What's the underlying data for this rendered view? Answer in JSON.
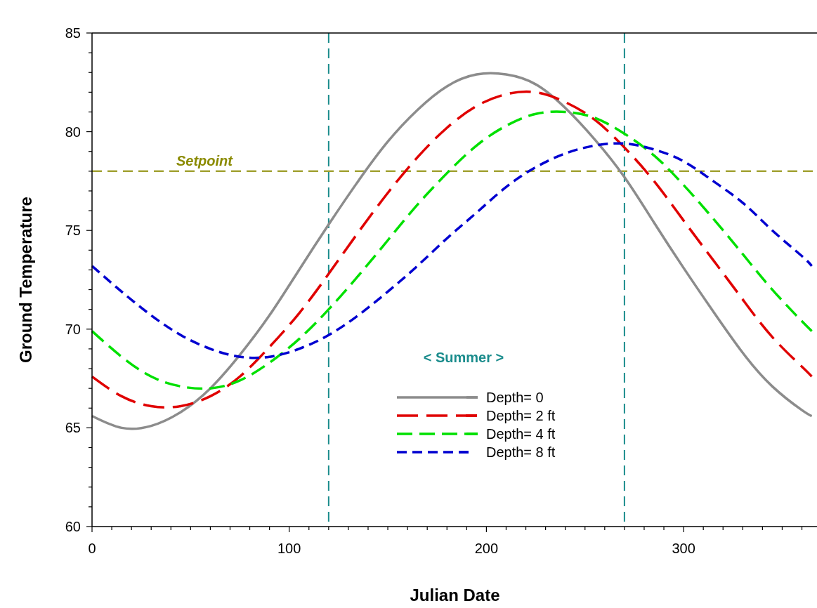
{
  "chart_data": {
    "type": "line",
    "xlabel": "Julian Date",
    "ylabel": "Ground Temperature",
    "x": [
      0,
      15,
      30,
      45,
      60,
      75,
      90,
      105,
      120,
      135,
      150,
      165,
      180,
      195,
      210,
      225,
      240,
      255,
      270,
      285,
      300,
      315,
      330,
      345,
      360,
      365
    ],
    "series": [
      {
        "name": "Depth= 0",
        "color": "#8c8c8c",
        "line_style": "solid",
        "values": [
          65.6,
          65.0,
          65.1,
          65.8,
          67.0,
          68.7,
          70.7,
          73.0,
          75.3,
          77.5,
          79.5,
          81.1,
          82.3,
          82.9,
          82.9,
          82.4,
          81.2,
          79.6,
          77.7,
          75.4,
          73.1,
          70.9,
          68.8,
          67.1,
          65.9,
          65.6
        ]
      },
      {
        "name": "Depth= 2 ft",
        "color": "#e00000",
        "line_style": "dashed",
        "values": [
          67.6,
          66.6,
          66.1,
          66.1,
          66.6,
          67.6,
          69.1,
          70.8,
          72.8,
          74.9,
          76.9,
          78.7,
          80.2,
          81.3,
          81.9,
          82.0,
          81.5,
          80.6,
          79.2,
          77.5,
          75.5,
          73.5,
          71.5,
          69.6,
          68.1,
          67.6
        ]
      },
      {
        "name": "Depth= 4 ft",
        "color": "#00e000",
        "line_style": "dashed",
        "values": [
          69.9,
          68.6,
          67.6,
          67.1,
          67.0,
          67.4,
          68.3,
          69.5,
          71.0,
          72.7,
          74.5,
          76.3,
          77.9,
          79.3,
          80.3,
          80.9,
          81.0,
          80.7,
          79.9,
          78.8,
          77.3,
          75.6,
          73.8,
          72.0,
          70.4,
          69.9
        ]
      },
      {
        "name": "Depth= 8 ft",
        "color": "#0000d0",
        "line_style": "dashed",
        "values": [
          73.2,
          71.9,
          70.7,
          69.7,
          69.0,
          68.6,
          68.6,
          69.0,
          69.7,
          70.7,
          71.9,
          73.2,
          74.6,
          75.9,
          77.2,
          78.2,
          78.9,
          79.3,
          79.4,
          79.1,
          78.5,
          77.5,
          76.4,
          75.0,
          73.7,
          73.2
        ]
      }
    ],
    "xlim": [
      0,
      368
    ],
    "xticks": [
      0,
      {
        "value": 10,
        "label": null
      },
      {
        "value": 20,
        "label": null
      },
      {
        "value": 30,
        "label": null
      },
      {
        "value": 40,
        "label": null
      },
      {
        "value": 50,
        "label": null
      },
      {
        "value": 60,
        "label": null
      },
      {
        "value": 70,
        "label": null
      },
      {
        "value": 80,
        "label": null
      },
      {
        "value": 90,
        "label": null
      },
      100,
      {
        "value": 110,
        "label": null
      },
      {
        "value": 120,
        "label": null
      },
      {
        "value": 130,
        "label": null
      },
      {
        "value": 140,
        "label": null
      },
      {
        "value": 150,
        "label": null
      },
      {
        "value": 160,
        "label": null
      },
      {
        "value": 170,
        "label": null
      },
      {
        "value": 180,
        "label": null
      },
      {
        "value": 190,
        "label": null
      },
      200,
      {
        "value": 210,
        "label": null
      },
      {
        "value": 220,
        "label": null
      },
      {
        "value": 230,
        "label": null
      },
      {
        "value": 240,
        "label": null
      },
      {
        "value": 250,
        "label": null
      },
      {
        "value": 260,
        "label": null
      },
      {
        "value": 270,
        "label": null
      },
      {
        "value": 280,
        "label": null
      },
      {
        "value": 290,
        "label": null
      },
      300,
      {
        "value": 310,
        "label": null
      },
      {
        "value": 320,
        "label": null
      },
      {
        "value": 330,
        "label": null
      },
      {
        "value": 340,
        "label": null
      },
      {
        "value": 350,
        "label": null
      },
      {
        "value": 360,
        "label": null
      }
    ],
    "ylim": [
      60,
      85
    ],
    "yticks": [
      60,
      {
        "value": 61,
        "label": null
      },
      {
        "value": 62,
        "label": null
      },
      {
        "value": 63,
        "label": null
      },
      {
        "value": 64,
        "label": null
      },
      65,
      {
        "value": 66,
        "label": null
      },
      {
        "value": 67,
        "label": null
      },
      {
        "value": 68,
        "label": null
      },
      {
        "value": 69,
        "label": null
      },
      70,
      {
        "value": 71,
        "label": null
      },
      {
        "value": 72,
        "label": null
      },
      {
        "value": 73,
        "label": null
      },
      {
        "value": 74,
        "label": null
      },
      75,
      {
        "value": 76,
        "label": null
      },
      {
        "value": 77,
        "label": null
      },
      {
        "value": 78,
        "label": null
      },
      {
        "value": 79,
        "label": null
      },
      80,
      {
        "value": 81,
        "label": null
      },
      {
        "value": 82,
        "label": null
      },
      {
        "value": 83,
        "label": null
      },
      {
        "value": 84,
        "label": null
      },
      85
    ],
    "ref_lines": [
      {
        "axis": "y",
        "value": 78,
        "label": "Setpoint",
        "color": "#8b8b00",
        "line_style": "dashed"
      },
      {
        "axis": "x",
        "value": 120,
        "color": "#1a8c8c",
        "line_style": "dashed"
      },
      {
        "axis": "x",
        "value": 270,
        "color": "#1a8c8c",
        "line_style": "dashed"
      }
    ],
    "annotations": [
      "< Summer >"
    ],
    "legend": "bottom",
    "grid": false,
    "marker": "none"
  }
}
